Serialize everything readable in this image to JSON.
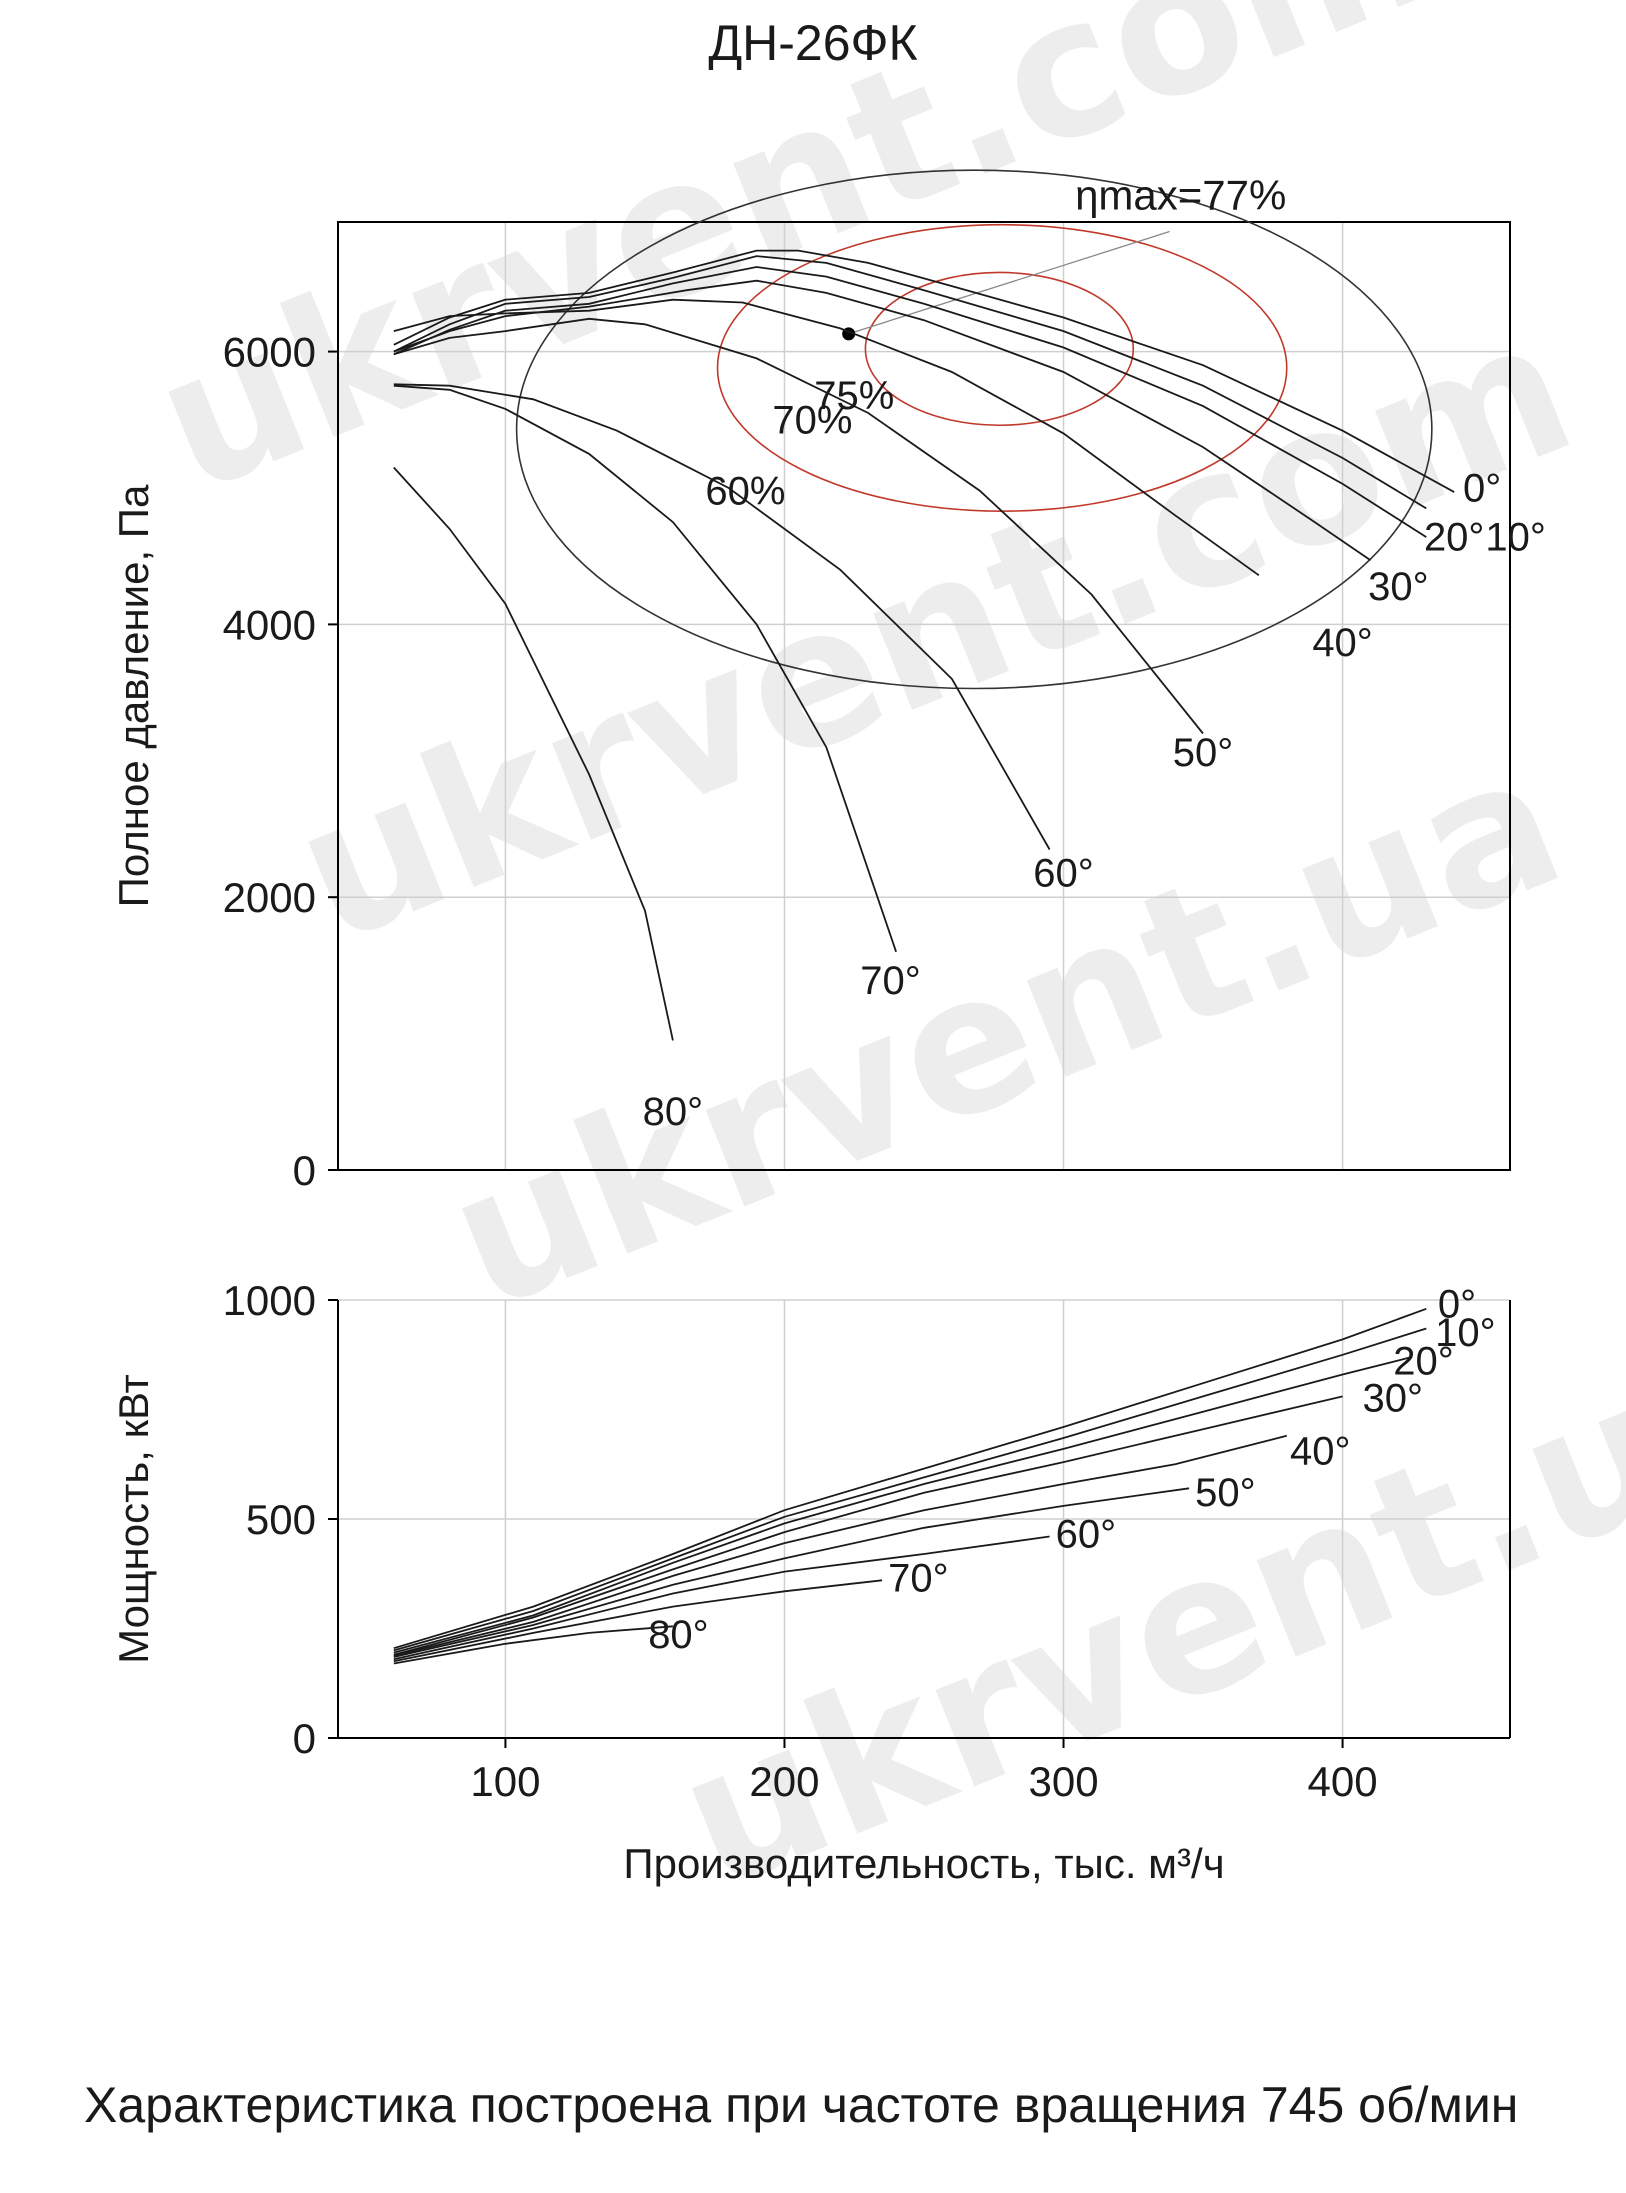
{
  "title": "ДН-26ФК",
  "note": "Характеристика построена при частоте вращения 745 об/мин",
  "watermark": "ukrvent.com",
  "watermark_short": "ukrvent.ua",
  "colors": {
    "curve": "#1a1a1a",
    "grid": "#cfcfcf",
    "efficiency_outer": "#333333",
    "efficiency_inner": "#c0392b"
  },
  "chart_data": [
    {
      "type": "line",
      "title": "",
      "xlabel": "Производительность, тыс. м³/ч",
      "ylabel": "Полное давление, Па",
      "xlim": [
        40,
        460
      ],
      "ylim": [
        0,
        6950
      ],
      "xticks": [
        100,
        200,
        300,
        400
      ],
      "yticks": [
        0,
        2000,
        4000,
        6000
      ],
      "grid": true,
      "annotation": {
        "label": "ηmax=77%",
        "point": [
          223,
          6130
        ]
      },
      "efficiency_contours": [
        {
          "label": "75%",
          "center": [
            277,
            6020
          ],
          "rx": 48,
          "ry": 560
        },
        {
          "label": "70%",
          "center": [
            278,
            5880
          ],
          "rx": 102,
          "ry": 1050
        },
        {
          "label": "60%",
          "center": [
            268,
            5430
          ],
          "rx": 164,
          "ry": 1900
        }
      ],
      "series": [
        {
          "name": "0°",
          "points": [
            [
              60,
              6050
            ],
            [
              80,
              6250
            ],
            [
              100,
              6380
            ],
            [
              130,
              6430
            ],
            [
              160,
              6580
            ],
            [
              190,
              6740
            ],
            [
              205,
              6740
            ],
            [
              230,
              6650
            ],
            [
              260,
              6480
            ],
            [
              300,
              6250
            ],
            [
              350,
              5900
            ],
            [
              400,
              5420
            ],
            [
              440,
              4970
            ]
          ]
        },
        {
          "name": "10°",
          "points": [
            [
              60,
              6000
            ],
            [
              80,
              6200
            ],
            [
              100,
              6350
            ],
            [
              130,
              6400
            ],
            [
              160,
              6540
            ],
            [
              190,
              6700
            ],
            [
              215,
              6650
            ],
            [
              250,
              6450
            ],
            [
              300,
              6150
            ],
            [
              350,
              5750
            ],
            [
              400,
              5220
            ],
            [
              430,
              4850
            ]
          ]
        },
        {
          "name": "20°",
          "points": [
            [
              60,
              5980
            ],
            [
              80,
              6160
            ],
            [
              100,
              6300
            ],
            [
              130,
              6350
            ],
            [
              160,
              6500
            ],
            [
              190,
              6620
            ],
            [
              215,
              6550
            ],
            [
              250,
              6350
            ],
            [
              300,
              6030
            ],
            [
              350,
              5600
            ],
            [
              400,
              5030
            ],
            [
              430,
              4640
            ]
          ]
        },
        {
          "name": "30°",
          "points": [
            [
              60,
              6000
            ],
            [
              80,
              6150
            ],
            [
              100,
              6260
            ],
            [
              130,
              6330
            ],
            [
              165,
              6450
            ],
            [
              190,
              6520
            ],
            [
              215,
              6430
            ],
            [
              250,
              6230
            ],
            [
              300,
              5850
            ],
            [
              350,
              5300
            ],
            [
              390,
              4750
            ],
            [
              410,
              4470
            ]
          ]
        },
        {
          "name": "40°",
          "points": [
            [
              60,
              6150
            ],
            [
              80,
              6260
            ],
            [
              100,
              6280
            ],
            [
              130,
              6300
            ],
            [
              160,
              6380
            ],
            [
              185,
              6360
            ],
            [
              220,
              6170
            ],
            [
              260,
              5850
            ],
            [
              300,
              5400
            ],
            [
              340,
              4800
            ],
            [
              370,
              4360
            ]
          ]
        },
        {
          "name": "50°",
          "points": [
            [
              60,
              5980
            ],
            [
              80,
              6100
            ],
            [
              100,
              6150
            ],
            [
              130,
              6240
            ],
            [
              150,
              6200
            ],
            [
              190,
              5950
            ],
            [
              230,
              5550
            ],
            [
              270,
              4980
            ],
            [
              310,
              4220
            ],
            [
              350,
              3200
            ]
          ]
        },
        {
          "name": "60°",
          "points": [
            [
              60,
              5760
            ],
            [
              80,
              5750
            ],
            [
              110,
              5650
            ],
            [
              140,
              5420
            ],
            [
              180,
              5000
            ],
            [
              220,
              4400
            ],
            [
              260,
              3600
            ],
            [
              295,
              2350
            ]
          ]
        },
        {
          "name": "70°",
          "points": [
            [
              60,
              5750
            ],
            [
              80,
              5720
            ],
            [
              100,
              5580
            ],
            [
              130,
              5250
            ],
            [
              160,
              4750
            ],
            [
              190,
              4000
            ],
            [
              215,
              3100
            ],
            [
              240,
              1600
            ]
          ]
        },
        {
          "name": "80°",
          "points": [
            [
              60,
              5150
            ],
            [
              80,
              4700
            ],
            [
              100,
              4150
            ],
            [
              130,
              2900
            ],
            [
              150,
              1900
            ],
            [
              160,
              950
            ]
          ]
        }
      ]
    },
    {
      "type": "line",
      "title": "",
      "xlabel": "Производительность, тыс. м³/ч",
      "ylabel": "Мощность, кВт",
      "xlim": [
        40,
        460
      ],
      "ylim": [
        0,
        1000
      ],
      "xticks": [
        100,
        200,
        300,
        400
      ],
      "yticks": [
        0,
        500,
        1000
      ],
      "grid": true,
      "series": [
        {
          "name": "0°",
          "points": [
            [
              60,
              205
            ],
            [
              110,
              300
            ],
            [
              160,
              420
            ],
            [
              200,
              520
            ],
            [
              250,
              615
            ],
            [
              300,
              710
            ],
            [
              350,
              810
            ],
            [
              400,
              910
            ],
            [
              430,
              980
            ]
          ]
        },
        {
          "name": "10°",
          "points": [
            [
              60,
              200
            ],
            [
              110,
              290
            ],
            [
              160,
              410
            ],
            [
              200,
              505
            ],
            [
              250,
              595
            ],
            [
              300,
              685
            ],
            [
              350,
              780
            ],
            [
              400,
              875
            ],
            [
              430,
              935
            ]
          ]
        },
        {
          "name": "20°",
          "points": [
            [
              60,
              195
            ],
            [
              110,
              280
            ],
            [
              160,
              400
            ],
            [
              200,
              490
            ],
            [
              250,
              580
            ],
            [
              300,
              660
            ],
            [
              350,
              745
            ],
            [
              400,
              830
            ],
            [
              425,
              870
            ]
          ]
        },
        {
          "name": "30°",
          "points": [
            [
              60,
              190
            ],
            [
              110,
              275
            ],
            [
              160,
              385
            ],
            [
              200,
              470
            ],
            [
              250,
              560
            ],
            [
              300,
              630
            ],
            [
              350,
              705
            ],
            [
              400,
              780
            ]
          ]
        },
        {
          "name": "40°",
          "points": [
            [
              60,
              188
            ],
            [
              110,
              265
            ],
            [
              160,
              370
            ],
            [
              200,
              445
            ],
            [
              250,
              520
            ],
            [
              300,
              580
            ],
            [
              340,
              625
            ],
            [
              380,
              690
            ]
          ]
        },
        {
          "name": "50°",
          "points": [
            [
              60,
              185
            ],
            [
              110,
              258
            ],
            [
              160,
              350
            ],
            [
              200,
              410
            ],
            [
              250,
              480
            ],
            [
              300,
              530
            ],
            [
              345,
              570
            ]
          ]
        },
        {
          "name": "60°",
          "points": [
            [
              60,
              180
            ],
            [
              110,
              250
            ],
            [
              160,
              330
            ],
            [
              200,
              380
            ],
            [
              250,
              420
            ],
            [
              295,
              460
            ]
          ]
        },
        {
          "name": "70°",
          "points": [
            [
              60,
              175
            ],
            [
              110,
              240
            ],
            [
              160,
              300
            ],
            [
              200,
              335
            ],
            [
              235,
              360
            ]
          ]
        },
        {
          "name": "80°",
          "points": [
            [
              60,
              170
            ],
            [
              100,
              215
            ],
            [
              130,
              240
            ],
            [
              160,
              255
            ]
          ]
        }
      ]
    }
  ]
}
